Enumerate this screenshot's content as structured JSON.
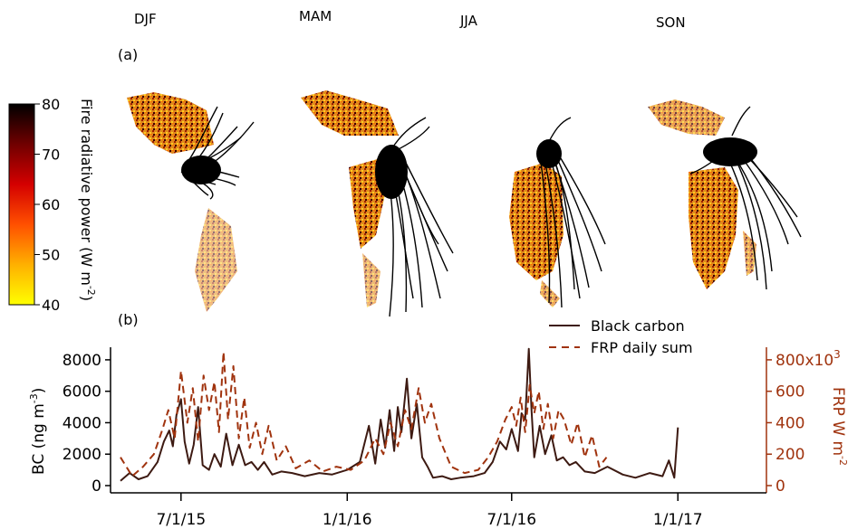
{
  "panel_a": {
    "label": "(a)",
    "seasons": [
      "DJF",
      "MAM",
      "JJA",
      "SON"
    ],
    "colorbar": {
      "label": "Fire radiative power (W m",
      "label_exp": "-2",
      "label_close": ")",
      "ticks": [
        "80",
        "70",
        "60",
        "50",
        "40"
      ],
      "min": 40,
      "max": 80,
      "colors": [
        "#ffff00",
        "#ffb000",
        "#ff5000",
        "#d40000",
        "#700000",
        "#000000"
      ]
    }
  },
  "panel_b": {
    "label": "(b)"
  },
  "chart_data": {
    "type": "line",
    "x_tick_labels": [
      "7/1/15",
      "1/1/16",
      "7/1/16",
      "1/1/17"
    ],
    "x_tick_dates": [
      "2015-07-01",
      "2016-01-01",
      "2016-07-01",
      "2017-01-01"
    ],
    "xlim": [
      "2015-04-20",
      "2017-04-01"
    ],
    "left_axis": {
      "label": "BC (ng m",
      "label_exp": "-3",
      "label_close": ")",
      "ylim": [
        0,
        8800
      ],
      "ticks": [
        "0",
        "2000",
        "4000",
        "6000",
        "8000"
      ],
      "color": "#000000"
    },
    "right_axis": {
      "label": "FRP W m",
      "label_exp": "-2",
      "ylim": [
        0,
        880000
      ],
      "ticks": [
        "0",
        "200",
        "400",
        "600",
        "800x10"
      ],
      "tick_exp": "3",
      "color": "#a0330e"
    },
    "series": [
      {
        "name": "Black carbon",
        "axis": "left",
        "color": "#3d1a12",
        "dash": "solid",
        "x": [
          "2015-04-25",
          "2015-05-05",
          "2015-05-15",
          "2015-05-25",
          "2015-06-05",
          "2015-06-12",
          "2015-06-18",
          "2015-06-22",
          "2015-06-26",
          "2015-07-01",
          "2015-07-05",
          "2015-07-10",
          "2015-07-15",
          "2015-07-20",
          "2015-07-25",
          "2015-08-01",
          "2015-08-07",
          "2015-08-14",
          "2015-08-20",
          "2015-08-27",
          "2015-09-03",
          "2015-09-10",
          "2015-09-17",
          "2015-09-24",
          "2015-10-01",
          "2015-10-10",
          "2015-10-20",
          "2015-11-01",
          "2015-11-15",
          "2015-12-01",
          "2015-12-15",
          "2016-01-01",
          "2016-01-15",
          "2016-01-25",
          "2016-02-01",
          "2016-02-07",
          "2016-02-12",
          "2016-02-17",
          "2016-02-22",
          "2016-02-26",
          "2016-03-01",
          "2016-03-07",
          "2016-03-12",
          "2016-03-18",
          "2016-03-24",
          "2016-03-30",
          "2016-04-05",
          "2016-04-15",
          "2016-04-25",
          "2016-05-05",
          "2016-05-20",
          "2016-06-01",
          "2016-06-10",
          "2016-06-18",
          "2016-06-25",
          "2016-07-01",
          "2016-07-08",
          "2016-07-12",
          "2016-07-16",
          "2016-07-20",
          "2016-07-23",
          "2016-07-26",
          "2016-08-01",
          "2016-08-07",
          "2016-08-14",
          "2016-08-20",
          "2016-08-27",
          "2016-09-03",
          "2016-09-10",
          "2016-09-20",
          "2016-10-01",
          "2016-10-15",
          "2016-11-01",
          "2016-11-15",
          "2016-12-01",
          "2016-12-15",
          "2016-12-22",
          "2016-12-28",
          "2017-01-01"
        ],
        "y": [
          300,
          800,
          400,
          600,
          1500,
          2800,
          3500,
          2500,
          4500,
          5500,
          2800,
          1400,
          2600,
          5000,
          1300,
          1000,
          2000,
          1200,
          3300,
          1300,
          2600,
          1300,
          1500,
          1000,
          1500,
          700,
          900,
          800,
          600,
          800,
          700,
          1000,
          1500,
          3800,
          1400,
          4200,
          2400,
          4800,
          2200,
          5000,
          3400,
          6800,
          3000,
          5200,
          1800,
          1200,
          500,
          600,
          400,
          500,
          600,
          800,
          1500,
          2800,
          2300,
          3600,
          2200,
          4600,
          4200,
          8700,
          4800,
          1800,
          3800,
          2000,
          3200,
          1600,
          1800,
          1300,
          1500,
          900,
          800,
          1200,
          700,
          500,
          800,
          600,
          1600,
          500,
          3700
        ]
      },
      {
        "name": "FRP daily sum",
        "axis": "right",
        "color": "#a0330e",
        "dash": "dashed",
        "x": [
          "2015-04-25",
          "2015-05-08",
          "2015-05-20",
          "2015-06-01",
          "2015-06-10",
          "2015-06-17",
          "2015-06-24",
          "2015-07-01",
          "2015-07-08",
          "2015-07-14",
          "2015-07-20",
          "2015-07-26",
          "2015-08-01",
          "2015-08-07",
          "2015-08-12",
          "2015-08-17",
          "2015-08-22",
          "2015-08-28",
          "2015-09-03",
          "2015-09-09",
          "2015-09-15",
          "2015-09-22",
          "2015-09-29",
          "2015-10-06",
          "2015-10-15",
          "2015-10-25",
          "2015-11-05",
          "2015-11-20",
          "2015-12-05",
          "2015-12-20",
          "2016-01-05",
          "2016-01-20",
          "2016-02-01",
          "2016-02-10",
          "2016-02-18",
          "2016-02-26",
          "2016-03-05",
          "2016-03-12",
          "2016-03-20",
          "2016-03-27",
          "2016-04-03",
          "2016-04-12",
          "2016-04-25",
          "2016-05-10",
          "2016-05-25",
          "2016-06-05",
          "2016-06-15",
          "2016-06-24",
          "2016-07-01",
          "2016-07-06",
          "2016-07-11",
          "2016-07-16",
          "2016-07-21",
          "2016-07-26",
          "2016-07-31",
          "2016-08-05",
          "2016-08-10",
          "2016-08-16",
          "2016-08-22",
          "2016-08-28",
          "2016-09-05",
          "2016-09-12",
          "2016-09-20",
          "2016-09-28",
          "2016-10-06",
          "2016-10-14"
        ],
        "y": [
          180000,
          60000,
          120000,
          200000,
          350000,
          480000,
          300000,
          730000,
          400000,
          620000,
          280000,
          700000,
          480000,
          660000,
          340000,
          850000,
          420000,
          760000,
          300000,
          560000,
          240000,
          400000,
          200000,
          380000,
          160000,
          250000,
          110000,
          160000,
          90000,
          120000,
          100000,
          160000,
          300000,
          200000,
          400000,
          250000,
          480000,
          360000,
          620000,
          400000,
          520000,
          300000,
          120000,
          80000,
          100000,
          180000,
          280000,
          420000,
          500000,
          380000,
          560000,
          340000,
          640000,
          460000,
          600000,
          360000,
          520000,
          300000,
          480000,
          420000,
          260000,
          400000,
          180000,
          320000,
          120000,
          180000
        ]
      }
    ],
    "legend": {
      "placement": "top-right",
      "entries": [
        "Black carbon",
        "FRP daily sum"
      ]
    }
  }
}
